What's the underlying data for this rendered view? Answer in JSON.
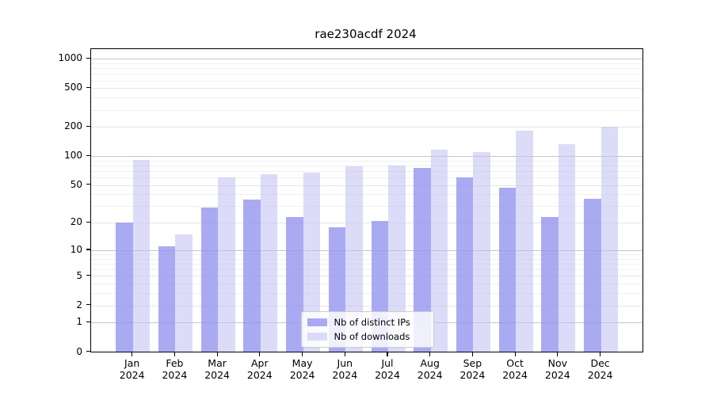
{
  "title": "rae230acdf 2024",
  "chart_data": {
    "type": "bar",
    "scale": "log1p (symlog-like, y maps to log10(value+1))",
    "title": "rae230acdf 2024",
    "xlabel": "",
    "ylabel": "",
    "categories": [
      "Jan 2024",
      "Feb 2024",
      "Mar 2024",
      "Apr 2024",
      "May 2024",
      "Jun 2024",
      "Jul 2024",
      "Aug 2024",
      "Sep 2024",
      "Oct 2024",
      "Nov 2024",
      "Dec 2024"
    ],
    "x_ticks": [
      {
        "month": "Jan",
        "year": "2024"
      },
      {
        "month": "Feb",
        "year": "2024"
      },
      {
        "month": "Mar",
        "year": "2024"
      },
      {
        "month": "Apr",
        "year": "2024"
      },
      {
        "month": "May",
        "year": "2024"
      },
      {
        "month": "Jun",
        "year": "2024"
      },
      {
        "month": "Jul",
        "year": "2024"
      },
      {
        "month": "Aug",
        "year": "2024"
      },
      {
        "month": "Sep",
        "year": "2024"
      },
      {
        "month": "Oct",
        "year": "2024"
      },
      {
        "month": "Nov",
        "year": "2024"
      },
      {
        "month": "Dec",
        "year": "2024"
      }
    ],
    "series": [
      {
        "name": "Nb of distinct IPs",
        "color": "rgba(149,149,240,0.8)",
        "solid_color": "#aaaaf0",
        "values": [
          20,
          11,
          29,
          35,
          23,
          18,
          21,
          75,
          60,
          47,
          23,
          36
        ]
      },
      {
        "name": "Nb of downloads",
        "color": "rgba(191,191,242,0.55)",
        "solid_color": "#dcdcf8",
        "values": [
          92,
          15,
          60,
          65,
          68,
          78,
          80,
          116,
          111,
          183,
          134,
          200
        ]
      }
    ],
    "yticks": [
      0,
      1,
      2,
      5,
      10,
      20,
      50,
      100,
      200,
      500,
      1000
    ],
    "ytick_decades": [
      1,
      10,
      100,
      1000
    ],
    "ytick_mids": [
      2,
      5,
      20,
      50,
      200,
      500
    ],
    "ytick_minors": [
      3,
      4,
      6,
      7,
      8,
      9,
      30,
      40,
      60,
      70,
      80,
      90,
      300,
      400,
      600,
      700,
      800,
      900
    ],
    "ylim": [
      0,
      1265
    ],
    "grid": true,
    "legend_position": "lower center"
  },
  "legend": {
    "items": [
      {
        "label": "Nb of distinct IPs",
        "color": "rgba(149,149,240,0.8)"
      },
      {
        "label": "Nb of downloads",
        "color": "rgba(191,191,242,0.55)"
      }
    ]
  },
  "colors": {
    "distinct_ips_bar": "#aaaaf0",
    "downloads_bar": "#dcdcf8",
    "grid_major": "#c6c6c6",
    "grid_minor": "#f0f0f0",
    "spine": "#000000",
    "background": "#ffffff"
  }
}
